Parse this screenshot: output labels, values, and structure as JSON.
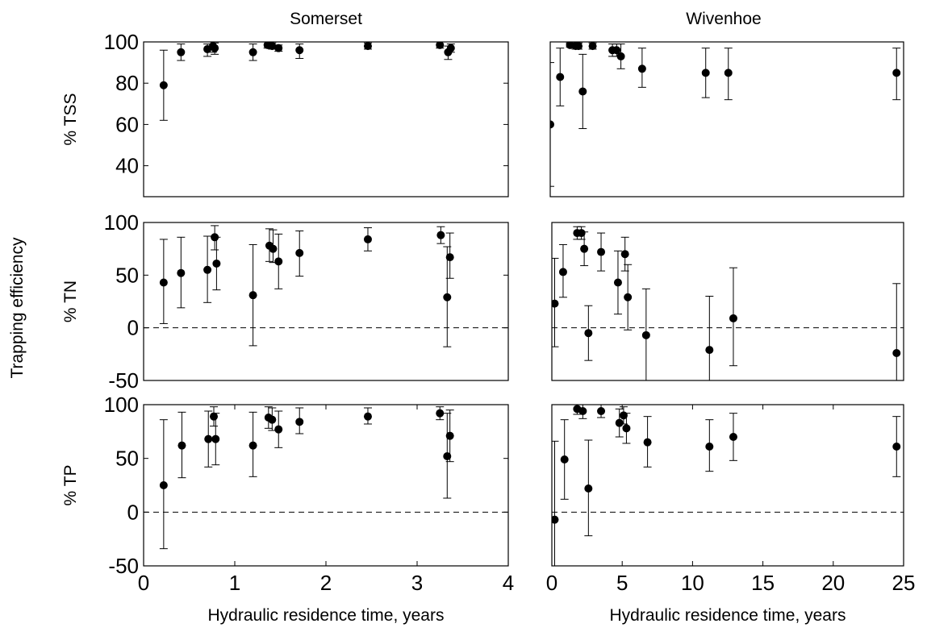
{
  "figure": {
    "shared_ylabel": "Trapping efficiency",
    "col_titles": [
      "Somerset",
      "Wivenhoe"
    ],
    "xlabel": "Hydraulic residence time, years",
    "row_ylabels": [
      "% TSS",
      "% TN",
      "% TP"
    ]
  },
  "chart_data": [
    {
      "type": "scatter",
      "title": "Somerset",
      "ylabel": "% TSS",
      "xlabel": "",
      "xlim": [
        0,
        4
      ],
      "ylim": [
        25,
        100
      ],
      "xticks": [],
      "yticks": [
        40,
        60,
        80,
        100
      ],
      "grid": false,
      "zero_line": false,
      "points": [
        {
          "x": 0.22,
          "y": 79,
          "lo": 62,
          "hi": 96
        },
        {
          "x": 0.41,
          "y": 95,
          "lo": 91,
          "hi": 99
        },
        {
          "x": 0.7,
          "y": 96.5,
          "lo": 93,
          "hi": 99
        },
        {
          "x": 0.76,
          "y": 98,
          "lo": 95,
          "hi": 100
        },
        {
          "x": 0.78,
          "y": 97,
          "lo": 94,
          "hi": 99.5
        },
        {
          "x": 1.2,
          "y": 95,
          "lo": 91,
          "hi": 99
        },
        {
          "x": 1.36,
          "y": 98.5,
          "lo": 97,
          "hi": 100
        },
        {
          "x": 1.41,
          "y": 98,
          "lo": 96.5,
          "hi": 99.5
        },
        {
          "x": 1.48,
          "y": 97,
          "lo": 95.5,
          "hi": 98.5
        },
        {
          "x": 1.71,
          "y": 96,
          "lo": 92,
          "hi": 99
        },
        {
          "x": 2.46,
          "y": 98,
          "lo": 96.5,
          "hi": 99.5
        },
        {
          "x": 3.25,
          "y": 98.5,
          "lo": 97,
          "hi": 100
        },
        {
          "x": 3.34,
          "y": 95,
          "lo": 91.5,
          "hi": 98
        },
        {
          "x": 3.37,
          "y": 97,
          "lo": 95,
          "hi": 99
        }
      ]
    },
    {
      "type": "scatter",
      "title": "Wivenhoe",
      "ylabel": "",
      "xlabel": "",
      "xlim": [
        0,
        25
      ],
      "ylim": [
        25,
        100
      ],
      "xticks": [],
      "yticks": [],
      "grid": false,
      "zero_line": false,
      "points": [
        {
          "x": 0.0,
          "y": 60,
          "lo": 30,
          "hi": 90
        },
        {
          "x": 0.7,
          "y": 83,
          "lo": 69,
          "hi": 97
        },
        {
          "x": 1.4,
          "y": 98.5,
          "lo": 97.5,
          "hi": 99.5
        },
        {
          "x": 1.8,
          "y": 98,
          "lo": 96.5,
          "hi": 99.5
        },
        {
          "x": 2.0,
          "y": 98,
          "lo": 96.5,
          "hi": 99.5
        },
        {
          "x": 2.3,
          "y": 76,
          "lo": 58,
          "hi": 94
        },
        {
          "x": 3.0,
          "y": 98,
          "lo": 96.5,
          "hi": 99.5
        },
        {
          "x": 4.4,
          "y": 96,
          "lo": 93,
          "hi": 99
        },
        {
          "x": 4.7,
          "y": 96,
          "lo": 93,
          "hi": 99
        },
        {
          "x": 5.0,
          "y": 93,
          "lo": 87,
          "hi": 99
        },
        {
          "x": 6.5,
          "y": 87,
          "lo": 78,
          "hi": 97
        },
        {
          "x": 11.0,
          "y": 85,
          "lo": 73,
          "hi": 97
        },
        {
          "x": 12.6,
          "y": 85,
          "lo": 72,
          "hi": 97
        },
        {
          "x": 24.5,
          "y": 85,
          "lo": 72,
          "hi": 97
        }
      ]
    },
    {
      "type": "scatter",
      "title": "",
      "ylabel": "% TN",
      "xlabel": "",
      "xlim": [
        0,
        4
      ],
      "ylim": [
        -50,
        100
      ],
      "xticks": [],
      "yticks": [
        -50,
        0,
        50,
        100
      ],
      "grid": false,
      "zero_line": true,
      "points": [
        {
          "x": 0.22,
          "y": 43,
          "lo": 4,
          "hi": 84
        },
        {
          "x": 0.41,
          "y": 52,
          "lo": 19,
          "hi": 86
        },
        {
          "x": 0.7,
          "y": 55,
          "lo": 24,
          "hi": 87
        },
        {
          "x": 0.78,
          "y": 86,
          "lo": 74,
          "hi": 97
        },
        {
          "x": 0.8,
          "y": 61,
          "lo": 36,
          "hi": 86
        },
        {
          "x": 1.2,
          "y": 31,
          "lo": -17,
          "hi": 79
        },
        {
          "x": 1.38,
          "y": 78,
          "lo": 63,
          "hi": 94
        },
        {
          "x": 1.42,
          "y": 75,
          "lo": 62,
          "hi": 93
        },
        {
          "x": 1.48,
          "y": 63,
          "lo": 37,
          "hi": 89
        },
        {
          "x": 1.71,
          "y": 71,
          "lo": 49,
          "hi": 92
        },
        {
          "x": 2.46,
          "y": 84,
          "lo": 73,
          "hi": 95
        },
        {
          "x": 3.26,
          "y": 88,
          "lo": 80,
          "hi": 96
        },
        {
          "x": 3.33,
          "y": 29,
          "lo": -18,
          "hi": 77
        },
        {
          "x": 3.36,
          "y": 67,
          "lo": 47,
          "hi": 90
        }
      ]
    },
    {
      "type": "scatter",
      "title": "",
      "ylabel": "",
      "xlabel": "",
      "xlim": [
        0,
        25
      ],
      "ylim": [
        -50,
        100
      ],
      "xticks": [],
      "yticks": [],
      "grid": false,
      "zero_line": true,
      "points": [
        {
          "x": 0.2,
          "y": 23,
          "lo": -18,
          "hi": 66
        },
        {
          "x": 0.8,
          "y": 53,
          "lo": 29,
          "hi": 79
        },
        {
          "x": 1.8,
          "y": 90,
          "lo": 84,
          "hi": 96
        },
        {
          "x": 2.1,
          "y": 90,
          "lo": 84,
          "hi": 96
        },
        {
          "x": 2.3,
          "y": 75,
          "lo": 59,
          "hi": 91
        },
        {
          "x": 2.6,
          "y": -5,
          "lo": -31,
          "hi": 21
        },
        {
          "x": 3.5,
          "y": 72,
          "lo": 54,
          "hi": 90
        },
        {
          "x": 4.7,
          "y": 43,
          "lo": 13,
          "hi": 73
        },
        {
          "x": 5.2,
          "y": 70,
          "lo": 54,
          "hi": 86
        },
        {
          "x": 5.4,
          "y": 29,
          "lo": -2,
          "hi": 60
        },
        {
          "x": 6.7,
          "y": -7,
          "lo": -50,
          "hi": 37
        },
        {
          "x": 11.2,
          "y": -21,
          "lo": -72,
          "hi": 30
        },
        {
          "x": 12.9,
          "y": 9,
          "lo": -36,
          "hi": 57
        },
        {
          "x": 24.5,
          "y": -24,
          "lo": -90,
          "hi": 42
        }
      ]
    },
    {
      "type": "scatter",
      "title": "",
      "ylabel": "% TP",
      "xlabel": "Hydraulic residence time, years",
      "xlim": [
        0,
        4
      ],
      "ylim": [
        -50,
        100
      ],
      "xticks": [
        0,
        1,
        2,
        3,
        4
      ],
      "yticks": [
        -50,
        0,
        50,
        100
      ],
      "grid": false,
      "zero_line": true,
      "points": [
        {
          "x": 0.22,
          "y": 25,
          "lo": -34,
          "hi": 86
        },
        {
          "x": 0.42,
          "y": 62,
          "lo": 32,
          "hi": 93
        },
        {
          "x": 0.71,
          "y": 68,
          "lo": 42,
          "hi": 94
        },
        {
          "x": 0.77,
          "y": 89,
          "lo": 80,
          "hi": 98
        },
        {
          "x": 0.79,
          "y": 68,
          "lo": 44,
          "hi": 92
        },
        {
          "x": 1.2,
          "y": 62,
          "lo": 33,
          "hi": 93
        },
        {
          "x": 1.37,
          "y": 88,
          "lo": 78,
          "hi": 98
        },
        {
          "x": 1.41,
          "y": 86,
          "lo": 76,
          "hi": 97
        },
        {
          "x": 1.48,
          "y": 77,
          "lo": 60,
          "hi": 94
        },
        {
          "x": 1.71,
          "y": 84,
          "lo": 73,
          "hi": 97
        },
        {
          "x": 2.46,
          "y": 89,
          "lo": 82,
          "hi": 97
        },
        {
          "x": 3.25,
          "y": 92,
          "lo": 86,
          "hi": 98
        },
        {
          "x": 3.33,
          "y": 52,
          "lo": 13,
          "hi": 92
        },
        {
          "x": 3.36,
          "y": 71,
          "lo": 47,
          "hi": 95
        }
      ]
    },
    {
      "type": "scatter",
      "title": "",
      "ylabel": "",
      "xlabel": "Hydraulic residence time, years",
      "xlim": [
        0,
        25
      ],
      "ylim": [
        -50,
        100
      ],
      "xticks": [
        0,
        5,
        10,
        15,
        20,
        25
      ],
      "yticks": [],
      "grid": false,
      "zero_line": true,
      "points": [
        {
          "x": 0.2,
          "y": -7,
          "lo": -80,
          "hi": 66
        },
        {
          "x": 0.9,
          "y": 49,
          "lo": 12,
          "hi": 86
        },
        {
          "x": 1.8,
          "y": 96,
          "lo": 91,
          "hi": 100
        },
        {
          "x": 2.2,
          "y": 94,
          "lo": 87,
          "hi": 100
        },
        {
          "x": 2.6,
          "y": 22,
          "lo": -22,
          "hi": 67
        },
        {
          "x": 3.5,
          "y": 94,
          "lo": 88,
          "hi": 100
        },
        {
          "x": 4.8,
          "y": 83,
          "lo": 70,
          "hi": 96
        },
        {
          "x": 5.1,
          "y": 90,
          "lo": 82,
          "hi": 98
        },
        {
          "x": 5.3,
          "y": 78,
          "lo": 64,
          "hi": 92
        },
        {
          "x": 6.8,
          "y": 65,
          "lo": 42,
          "hi": 89
        },
        {
          "x": 11.2,
          "y": 61,
          "lo": 38,
          "hi": 86
        },
        {
          "x": 12.9,
          "y": 70,
          "lo": 48,
          "hi": 92
        },
        {
          "x": 24.5,
          "y": 61,
          "lo": 33,
          "hi": 89
        }
      ]
    }
  ]
}
